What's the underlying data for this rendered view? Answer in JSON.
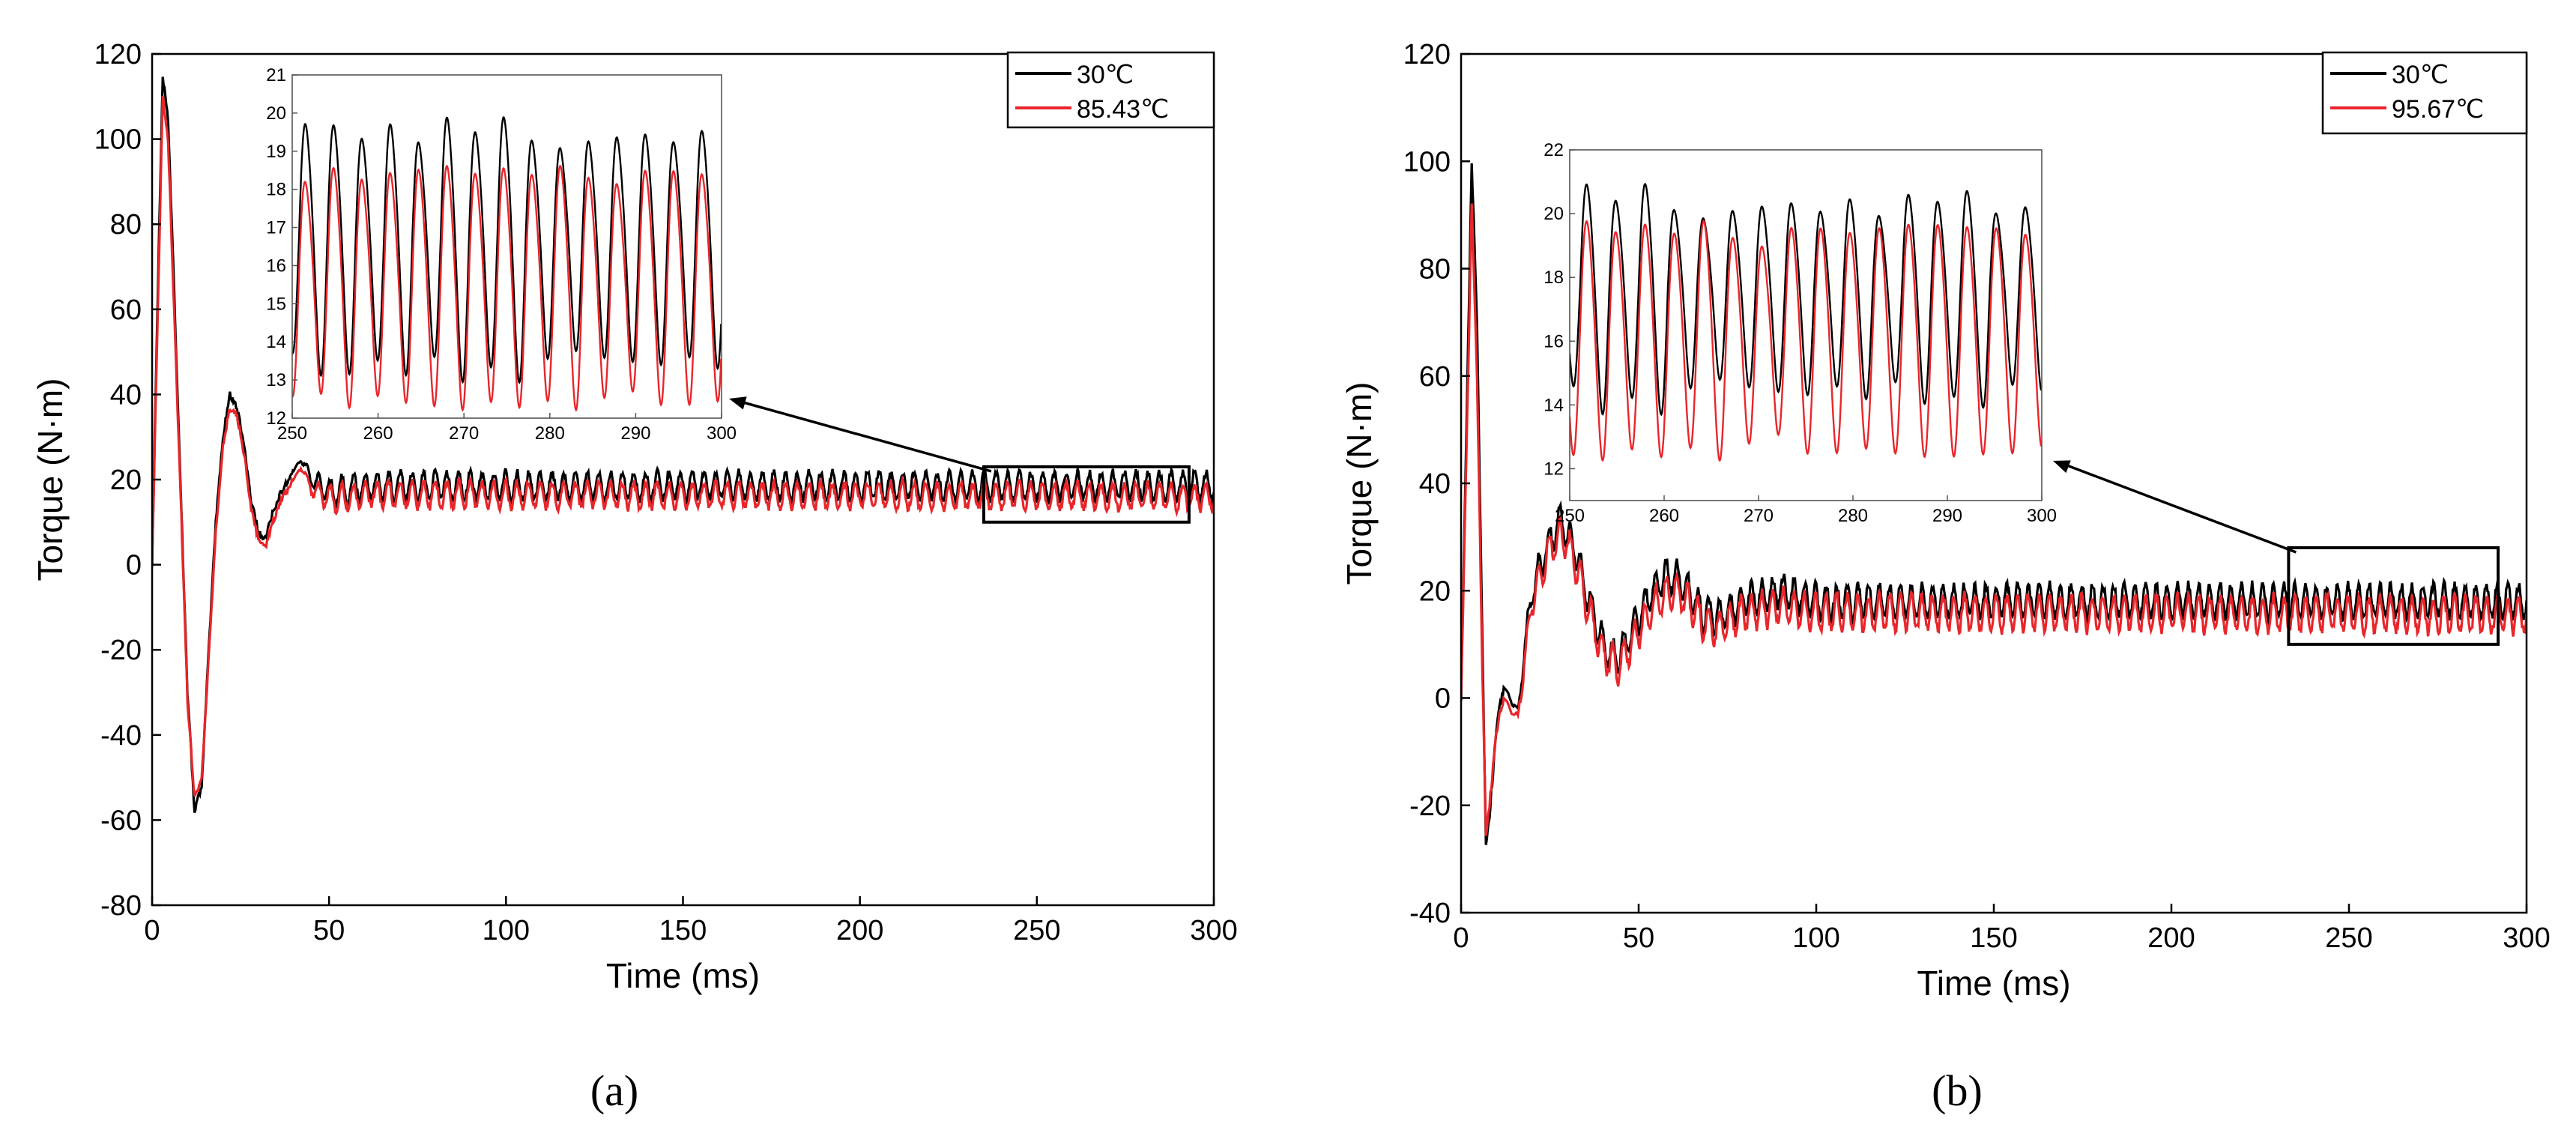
{
  "colors": {
    "series_30": "#000000",
    "series_hot": "#e8262b",
    "axis": "#000000"
  },
  "chart_data": [
    {
      "type": "line",
      "panel_label": "(a)",
      "xlabel": "Time (ms)",
      "ylabel": "Torque (N·m)",
      "xlim": [
        0,
        300
      ],
      "ylim": [
        -80,
        120
      ],
      "xticks": [
        0,
        50,
        100,
        150,
        200,
        250,
        300
      ],
      "yticks": [
        -80,
        -60,
        -40,
        -20,
        0,
        20,
        40,
        60,
        80,
        100,
        120
      ],
      "legend": {
        "position": "top-right",
        "entries": [
          "30℃",
          "85.43℃"
        ]
      },
      "series": [
        {
          "name": "30℃",
          "envelope": [
            [
              0,
              0
            ],
            [
              1.5,
              60
            ],
            [
              3,
              115
            ],
            [
              4.5,
              105
            ],
            [
              6,
              70
            ],
            [
              8,
              20
            ],
            [
              10,
              -30
            ],
            [
              12,
              -58
            ],
            [
              14,
              -52
            ],
            [
              16,
              -20
            ],
            [
              18,
              10
            ],
            [
              20,
              30
            ],
            [
              22,
              40
            ],
            [
              24,
              37
            ],
            [
              26,
              28
            ],
            [
              28,
              15
            ],
            [
              30,
              8
            ],
            [
              32,
              6
            ],
            [
              34,
              12
            ],
            [
              37,
              18
            ],
            [
              40,
              22
            ],
            [
              42,
              25
            ],
            [
              45,
              20
            ],
            [
              50,
              17
            ],
            [
              60,
              18.5
            ],
            [
              300,
              18.5
            ]
          ],
          "oscillation": {
            "period_ms": 3.3,
            "amplitude": 3.2,
            "start_ms": 40
          }
        },
        {
          "name": "85.43℃",
          "envelope": [
            [
              0,
              0
            ],
            [
              1.5,
              55
            ],
            [
              3,
              110
            ],
            [
              4.5,
              100
            ],
            [
              6,
              65
            ],
            [
              8,
              18
            ],
            [
              10,
              -32
            ],
            [
              12,
              -55
            ],
            [
              14,
              -50
            ],
            [
              16,
              -22
            ],
            [
              18,
              8
            ],
            [
              20,
              28
            ],
            [
              22,
              37
            ],
            [
              24,
              35
            ],
            [
              26,
              26
            ],
            [
              28,
              13
            ],
            [
              30,
              6
            ],
            [
              32,
              4
            ],
            [
              34,
              10
            ],
            [
              37,
              16
            ],
            [
              40,
              20
            ],
            [
              42,
              23
            ],
            [
              45,
              18
            ],
            [
              50,
              15.5
            ],
            [
              60,
              16.5
            ],
            [
              300,
              16
            ]
          ],
          "oscillation": {
            "period_ms": 3.3,
            "amplitude": 3.0,
            "start_ms": 40
          }
        }
      ],
      "zoom_box": {
        "x": [
          235,
          293
        ],
        "y": [
          10,
          23
        ]
      },
      "inset": {
        "xlim": [
          250,
          300
        ],
        "ylim": [
          12,
          21
        ],
        "xticks": [
          250,
          260,
          270,
          280,
          290,
          300
        ],
        "yticks": [
          12,
          13,
          14,
          15,
          16,
          17,
          18,
          19,
          20,
          21
        ],
        "period_ms": 3.3,
        "series": [
          {
            "name": "30℃",
            "mean": 16.6,
            "amplitude": 3.0,
            "jitter": 0.45
          },
          {
            "name": "85.43℃",
            "mean": 15.6,
            "amplitude": 2.9,
            "jitter": 0.3
          }
        ]
      }
    },
    {
      "type": "line",
      "panel_label": "(b)",
      "xlabel": "Time (ms)",
      "ylabel": "Torque (N·m)",
      "xlim": [
        0,
        300
      ],
      "ylim": [
        -40,
        120
      ],
      "xticks": [
        0,
        50,
        100,
        150,
        200,
        250,
        300
      ],
      "yticks": [
        -40,
        -20,
        0,
        20,
        40,
        60,
        80,
        100,
        120
      ],
      "legend": {
        "position": "top-right",
        "entries": [
          "30℃",
          "95.67℃"
        ]
      },
      "series": [
        {
          "name": "30℃",
          "envelope": [
            [
              0,
              0
            ],
            [
              1.5,
              50
            ],
            [
              3,
              100
            ],
            [
              4.5,
              70
            ],
            [
              6,
              10
            ],
            [
              7,
              -27
            ],
            [
              8,
              -22
            ],
            [
              10,
              -5
            ],
            [
              12,
              2
            ],
            [
              14,
              0
            ],
            [
              16,
              -3
            ],
            [
              18,
              10
            ],
            [
              20,
              20
            ],
            [
              24,
              28
            ],
            [
              28,
              33
            ],
            [
              32,
              28
            ],
            [
              36,
              18
            ],
            [
              40,
              10
            ],
            [
              44,
              7
            ],
            [
              48,
              12
            ],
            [
              52,
              18
            ],
            [
              56,
              22
            ],
            [
              60,
              23
            ],
            [
              64,
              20
            ],
            [
              68,
              16
            ],
            [
              72,
              15
            ],
            [
              80,
              18
            ],
            [
              90,
              20
            ],
            [
              100,
              18
            ],
            [
              300,
              18
            ]
          ],
          "oscillation": {
            "period_ms": 3.0,
            "amplitude": 3.0,
            "start_ms": 12
          }
        },
        {
          "name": "95.67℃",
          "envelope": [
            [
              0,
              0
            ],
            [
              1.5,
              45
            ],
            [
              3,
              92
            ],
            [
              4.5,
              60
            ],
            [
              6,
              5
            ],
            [
              7,
              -25
            ],
            [
              8,
              -20
            ],
            [
              10,
              -6
            ],
            [
              12,
              0
            ],
            [
              14,
              -2
            ],
            [
              16,
              -4
            ],
            [
              18,
              8
            ],
            [
              20,
              18
            ],
            [
              24,
              26
            ],
            [
              28,
              31
            ],
            [
              32,
              26
            ],
            [
              36,
              16
            ],
            [
              40,
              8
            ],
            [
              44,
              6
            ],
            [
              48,
              10
            ],
            [
              52,
              15
            ],
            [
              56,
              19
            ],
            [
              60,
              20
            ],
            [
              64,
              18
            ],
            [
              68,
              14
            ],
            [
              72,
              13
            ],
            [
              80,
              16
            ],
            [
              90,
              17
            ],
            [
              100,
              16
            ],
            [
              300,
              15.5
            ]
          ],
          "oscillation": {
            "period_ms": 3.0,
            "amplitude": 3.2,
            "start_ms": 12
          }
        }
      ],
      "zoom_box": {
        "x": [
          233,
          292
        ],
        "y": [
          10,
          28
        ]
      },
      "inset": {
        "xlim": [
          250,
          300
        ],
        "ylim": [
          11,
          22
        ],
        "xticks": [
          250,
          260,
          270,
          280,
          290,
          300
        ],
        "yticks": [
          12,
          14,
          16,
          18,
          20,
          22
        ],
        "period_ms": 3.1,
        "series": [
          {
            "name": "30℃",
            "mean": 17.5,
            "amplitude": 3.0,
            "jitter": 0.6
          },
          {
            "name": "95.67℃",
            "mean": 16.2,
            "amplitude": 3.3,
            "jitter": 0.5
          }
        ]
      }
    }
  ]
}
